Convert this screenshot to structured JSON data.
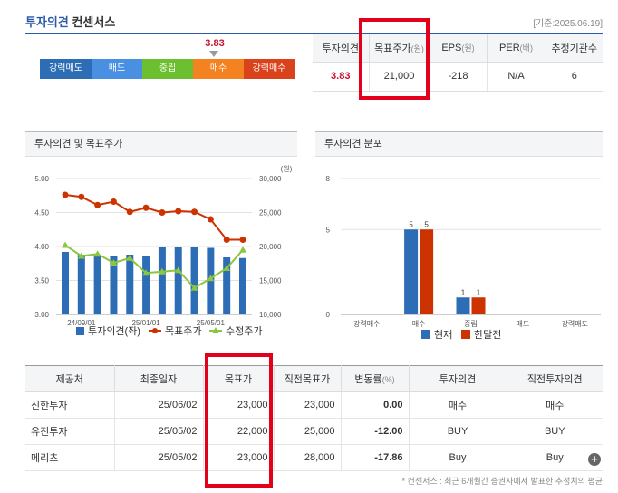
{
  "header": {
    "title_main": "투자의견",
    "title_sub": "컨센서스",
    "date": "[기준:2025.06.19]"
  },
  "meter": {
    "score": "3.83",
    "score_value": 3.83,
    "segments": [
      {
        "label": "강력매도",
        "color": "#2d6db5"
      },
      {
        "label": "매도",
        "color": "#4a90e2"
      },
      {
        "label": "중립",
        "color": "#6cbf2e"
      },
      {
        "label": "매수",
        "color": "#f58220"
      },
      {
        "label": "강력매수",
        "color": "#d9421b"
      }
    ]
  },
  "consensus": {
    "headers": [
      {
        "label": "투자의견",
        "unit": ""
      },
      {
        "label": "목표주가",
        "unit": "(원)"
      },
      {
        "label": "EPS",
        "unit": "(원)"
      },
      {
        "label": "PER",
        "unit": "(배)"
      },
      {
        "label": "추정기관수",
        "unit": ""
      }
    ],
    "values": [
      "3.83",
      "21,000",
      "-218",
      "N/A",
      "6"
    ]
  },
  "panel_left": {
    "title": "투자의견 및 목표주가",
    "right_unit": "(원)",
    "legend": [
      "투자의견(좌)",
      "목표주가",
      "수정주가"
    ]
  },
  "panel_right": {
    "title": "투자의견 분포",
    "legend": [
      "현재",
      "한달전"
    ]
  },
  "chart_data": [
    {
      "type": "bar",
      "title": "투자의견 및 목표주가",
      "x_ticks": [
        "24/09/01",
        "25/01/01",
        "25/05/01"
      ],
      "ylim_left": [
        3.0,
        5.0
      ],
      "yticks_left": [
        "5.00",
        "4.50",
        "4.00",
        "3.50",
        "3.00"
      ],
      "ylim_right": [
        10000,
        30000
      ],
      "yticks_right": [
        "30,000",
        "25,000",
        "20,000",
        "15,000",
        "10,000"
      ],
      "series": [
        {
          "name": "투자의견(좌)",
          "type": "bar",
          "axis": "left",
          "color": "#2d6db5",
          "values": [
            3.92,
            3.88,
            3.88,
            3.86,
            3.88,
            3.86,
            4.0,
            4.0,
            4.0,
            3.98,
            3.84,
            3.83
          ]
        },
        {
          "name": "목표주가",
          "type": "line",
          "axis": "right",
          "color": "#cc3300",
          "values": [
            27600,
            27300,
            26100,
            26600,
            25100,
            25700,
            25000,
            25200,
            25100,
            24000,
            21000,
            21000
          ]
        },
        {
          "name": "수정주가",
          "type": "line",
          "axis": "right",
          "color": "#8cc63f",
          "values": [
            20200,
            18600,
            18900,
            17600,
            18300,
            16100,
            16300,
            16500,
            13900,
            15300,
            16800,
            19500
          ]
        }
      ]
    },
    {
      "type": "bar",
      "title": "투자의견 분포",
      "categories": [
        "강력매수",
        "매수",
        "중립",
        "매도",
        "강력매도"
      ],
      "yticks": [
        "8",
        "5",
        "0"
      ],
      "ylim": [
        0,
        8
      ],
      "series": [
        {
          "name": "현재",
          "color": "#2d6db5",
          "values": [
            0,
            5,
            1,
            0,
            0
          ]
        },
        {
          "name": "한달전",
          "color": "#cc3300",
          "values": [
            0,
            5,
            1,
            0,
            0
          ]
        }
      ]
    }
  ],
  "brokers": {
    "headers": [
      {
        "label": "제공처",
        "unit": ""
      },
      {
        "label": "최종일자",
        "unit": ""
      },
      {
        "label": "목표가",
        "unit": ""
      },
      {
        "label": "직전목표가",
        "unit": ""
      },
      {
        "label": "변동률",
        "unit": "(%)"
      },
      {
        "label": "투자의견",
        "unit": ""
      },
      {
        "label": "직전투자의견",
        "unit": ""
      }
    ],
    "rows": [
      {
        "name": "신한투자",
        "date": "25/06/02",
        "target": "23,000",
        "prev_target": "23,000",
        "change": "0.00",
        "opinion": "매수",
        "prev_opinion": "매수"
      },
      {
        "name": "유진투자",
        "date": "25/05/02",
        "target": "22,000",
        "prev_target": "25,000",
        "change": "-12.00",
        "opinion": "BUY",
        "prev_opinion": "BUY"
      },
      {
        "name": "메리츠",
        "date": "25/05/02",
        "target": "23,000",
        "prev_target": "28,000",
        "change": "-17.86",
        "opinion": "Buy",
        "prev_opinion": "Buy"
      }
    ]
  },
  "more_button": "+",
  "footnote": "* 컨센서스 : 최근 6개월간 증권사에서 발표한 추정치의 평균"
}
